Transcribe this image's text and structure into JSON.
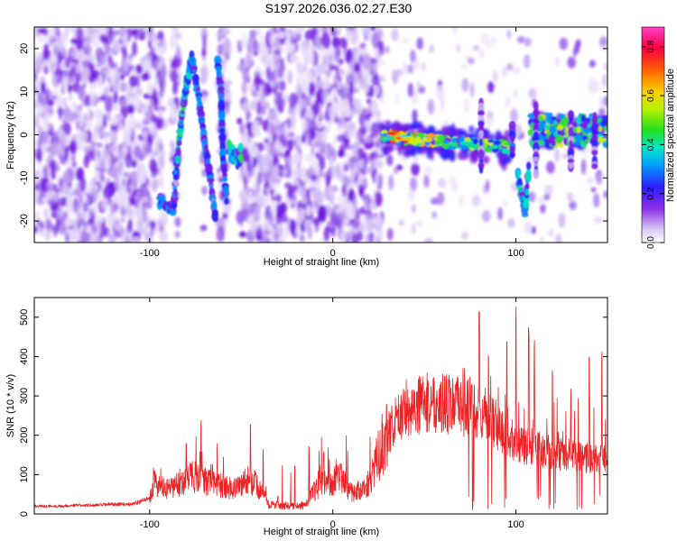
{
  "title": "S197.2026.036.02.27.E30",
  "chart_data": [
    {
      "type": "heatmap",
      "xlabel": "Height of straight line (km)",
      "ylabel": "Frequency (Hz)",
      "xlim": [
        -163,
        150
      ],
      "ylim": [
        -25,
        25
      ],
      "xticks": [
        -100,
        0,
        100
      ],
      "yticks": [
        -20,
        -10,
        0,
        10,
        20
      ],
      "colorbar": {
        "label": "Normalized spectral amplitude",
        "range": [
          0,
          0.88
        ],
        "ticks": [
          "0.0",
          "0.2",
          "0.4",
          "0.6",
          "0.8"
        ],
        "colors": [
          "#ffffff",
          "#c9b0f0",
          "#7a1ce0",
          "#2020ff",
          "#00c8ff",
          "#00e0a0",
          "#40e000",
          "#f0f000",
          "#ff8000",
          "#ff0050",
          "#ff40c0"
        ]
      },
      "features": [
        {
          "name": "broadband noise region",
          "x_range": [
            -163,
            -92
          ],
          "freq_range": [
            -25,
            25
          ]
        },
        {
          "name": "low band feature",
          "x_center": -90,
          "freq": -16,
          "peak_amplitude": 0.3
        },
        {
          "name": "rising track",
          "x_range": [
            -87,
            -76
          ],
          "freq_range": [
            -12,
            18
          ],
          "peak_amplitude": 0.35
        },
        {
          "name": "falling track",
          "x_range": [
            -76,
            -62
          ],
          "freq_range": [
            -20,
            15
          ],
          "peak_amplitude": 0.3
        },
        {
          "name": "mid cluster",
          "x_center": -55,
          "freq": -5,
          "peak_amplitude": 0.35
        },
        {
          "name": "noise region",
          "x_range": [
            -50,
            27
          ],
          "freq_range": [
            -25,
            25
          ]
        },
        {
          "name": "coherent band",
          "x_range": [
            27,
            100
          ],
          "freq_start": 0,
          "freq_end": -3,
          "peak_amplitude": 0.88
        },
        {
          "name": "dip feature",
          "x_center": 103,
          "freq": -13,
          "peak_amplitude": 0.4
        },
        {
          "name": "right band",
          "x_range": [
            108,
            150
          ],
          "freq": 1,
          "peak_amplitude": 0.5
        }
      ]
    },
    {
      "type": "line",
      "xlabel": "Height of straight line (km)",
      "ylabel": "SNR (10 * v/v)",
      "xlim": [
        -163,
        150
      ],
      "ylim": [
        0,
        550
      ],
      "xticks": [
        -100,
        0,
        100
      ],
      "yticks": [
        0,
        100,
        200,
        300,
        400,
        500
      ],
      "series": [
        {
          "name": "SNR",
          "color": "#ee2222",
          "x": [
            -163,
            -150,
            -140,
            -130,
            -120,
            -110,
            -100,
            -98,
            -95,
            -90,
            -85,
            -80,
            -75,
            -70,
            -65,
            -60,
            -55,
            -50,
            -45,
            -40,
            -35,
            -30,
            -25,
            -20,
            -15,
            -10,
            -5,
            0,
            5,
            10,
            15,
            20,
            25,
            30,
            35,
            40,
            45,
            50,
            55,
            60,
            65,
            70,
            75,
            80,
            85,
            90,
            95,
            100,
            105,
            110,
            115,
            120,
            125,
            130,
            135,
            140,
            145,
            150
          ],
          "values": [
            20,
            20,
            22,
            22,
            25,
            25,
            40,
            85,
            70,
            60,
            75,
            90,
            95,
            80,
            90,
            70,
            65,
            75,
            90,
            60,
            25,
            22,
            20,
            20,
            22,
            60,
            80,
            85,
            90,
            55,
            60,
            80,
            150,
            200,
            240,
            270,
            275,
            280,
            285,
            280,
            280,
            270,
            270,
            260,
            250,
            220,
            200,
            180,
            170,
            175,
            160,
            155,
            150,
            150,
            145,
            140,
            140,
            140
          ],
          "spikes": [
            [
              -80,
              210
            ],
            [
              -72,
              240
            ],
            [
              -45,
              245
            ],
            [
              -38,
              170
            ],
            [
              -30,
              50
            ],
            [
              -13,
              190
            ],
            [
              -5,
              160
            ],
            [
              3,
              130
            ],
            [
              35,
              260
            ],
            [
              75,
              360
            ],
            [
              80,
              520
            ],
            [
              85,
              440
            ],
            [
              95,
              450
            ],
            [
              100,
              550
            ],
            [
              107,
              490
            ],
            [
              110,
              470
            ],
            [
              120,
              390
            ],
            [
              130,
              320
            ],
            [
              140,
              400
            ],
            [
              147,
              420
            ]
          ]
        }
      ]
    }
  ]
}
